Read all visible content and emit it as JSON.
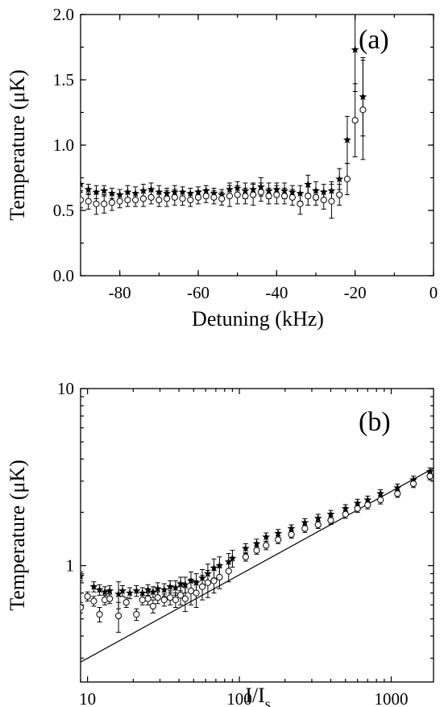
{
  "chart_data": [
    {
      "type": "scatter",
      "panel_label": "(a)",
      "xlabel": "Detuning (kHz)",
      "ylabel": "Temperature (μK)",
      "xlim": [
        -90,
        0
      ],
      "ylim": [
        0.0,
        2.0
      ],
      "x_ticks": [
        -80,
        -60,
        -40,
        -20,
        0
      ],
      "x_tick_labels": [
        "-80",
        "-60",
        "-40",
        "-20",
        "0"
      ],
      "y_ticks": [
        0.0,
        0.5,
        1.0,
        1.5,
        2.0
      ],
      "y_tick_labels": [
        "0.0",
        "0.5",
        "1.0",
        "1.5",
        "2.0"
      ],
      "grid": false,
      "series": [
        {
          "marker": "star",
          "x": [
            -90,
            -88,
            -86,
            -84,
            -82,
            -80,
            -78,
            -76,
            -74,
            -72,
            -70,
            -68,
            -66,
            -64,
            -62,
            -60,
            -58,
            -56,
            -54,
            -52,
            -50,
            -48,
            -46,
            -44,
            -42,
            -40,
            -38,
            -36,
            -34,
            -32,
            -30,
            -28,
            -26,
            -24,
            -22,
            -20,
            -18
          ],
          "y": [
            0.7,
            0.66,
            0.64,
            0.65,
            0.63,
            0.62,
            0.64,
            0.63,
            0.65,
            0.66,
            0.64,
            0.63,
            0.64,
            0.64,
            0.63,
            0.64,
            0.65,
            0.63,
            0.62,
            0.66,
            0.67,
            0.65,
            0.66,
            0.68,
            0.65,
            0.66,
            0.65,
            0.64,
            0.63,
            0.7,
            0.65,
            0.64,
            0.65,
            0.74,
            1.04,
            1.73,
            1.37
          ],
          "err": [
            0.05,
            0.04,
            0.05,
            0.04,
            0.04,
            0.04,
            0.05,
            0.05,
            0.05,
            0.05,
            0.05,
            0.04,
            0.05,
            0.04,
            0.04,
            0.04,
            0.04,
            0.04,
            0.04,
            0.05,
            0.05,
            0.06,
            0.05,
            0.07,
            0.06,
            0.05,
            0.06,
            0.05,
            0.06,
            0.07,
            0.07,
            0.06,
            0.07,
            0.08,
            0.18,
            0.32,
            0.3
          ]
        },
        {
          "marker": "open-circle",
          "x": [
            -90,
            -88,
            -86,
            -84,
            -82,
            -80,
            -78,
            -76,
            -74,
            -72,
            -70,
            -68,
            -66,
            -64,
            -62,
            -60,
            -58,
            -56,
            -54,
            -52,
            -50,
            -48,
            -46,
            -44,
            -42,
            -40,
            -38,
            -36,
            -34,
            -32,
            -30,
            -28,
            -26,
            -24,
            -22,
            -20,
            -18
          ],
          "y": [
            0.58,
            0.57,
            0.55,
            0.55,
            0.56,
            0.57,
            0.58,
            0.58,
            0.59,
            0.6,
            0.58,
            0.59,
            0.6,
            0.59,
            0.58,
            0.6,
            0.61,
            0.6,
            0.59,
            0.61,
            0.62,
            0.61,
            0.62,
            0.64,
            0.61,
            0.62,
            0.61,
            0.6,
            0.55,
            0.61,
            0.6,
            0.58,
            0.57,
            0.62,
            0.74,
            1.19,
            1.27
          ],
          "err": [
            0.06,
            0.06,
            0.08,
            0.07,
            0.06,
            0.05,
            0.05,
            0.05,
            0.06,
            0.05,
            0.05,
            0.06,
            0.06,
            0.05,
            0.05,
            0.05,
            0.05,
            0.05,
            0.05,
            0.08,
            0.07,
            0.06,
            0.08,
            0.07,
            0.06,
            0.07,
            0.06,
            0.06,
            0.08,
            0.07,
            0.06,
            0.07,
            0.13,
            0.08,
            0.12,
            0.28,
            0.38
          ]
        }
      ]
    },
    {
      "type": "scatter",
      "panel_label": "(b)",
      "xlabel_main": "I/I",
      "xlabel_sub": "s",
      "ylabel": "Temperature (μK)",
      "xscale": "log",
      "yscale": "log",
      "xlim": [
        9,
        1900
      ],
      "ylim": [
        0.22,
        10
      ],
      "x_ticks": [
        10,
        100,
        1000
      ],
      "x_tick_labels": [
        "10",
        "100",
        "1000"
      ],
      "y_ticks": [
        1,
        10
      ],
      "y_tick_labels": [
        "1",
        "10"
      ],
      "grid": false,
      "series": [
        {
          "marker": "star",
          "x": [
            9,
            11,
            12,
            13,
            14,
            16,
            17,
            19,
            21,
            23,
            25,
            27,
            29,
            32,
            35,
            38,
            41,
            44,
            48,
            52,
            57,
            62,
            68,
            74,
            85,
            90,
            110,
            130,
            150,
            180,
            220,
            270,
            330,
            400,
            500,
            600,
            700,
            850,
            1100,
            1400,
            1800
          ],
          "y": [
            0.87,
            0.76,
            0.73,
            0.71,
            0.72,
            0.69,
            0.72,
            0.7,
            0.72,
            0.7,
            0.73,
            0.71,
            0.74,
            0.73,
            0.76,
            0.75,
            0.79,
            0.78,
            0.82,
            0.8,
            0.85,
            0.9,
            0.97,
            1.0,
            1.05,
            1.1,
            1.25,
            1.33,
            1.45,
            1.52,
            1.62,
            1.75,
            1.85,
            1.95,
            2.1,
            2.25,
            2.35,
            2.55,
            2.75,
            3.05,
            3.4
          ],
          "err": [
            0.05,
            0.05,
            0.05,
            0.05,
            0.05,
            0.12,
            0.05,
            0.05,
            0.05,
            0.05,
            0.05,
            0.05,
            0.06,
            0.06,
            0.06,
            0.07,
            0.07,
            0.08,
            0.1,
            0.1,
            0.1,
            0.12,
            0.12,
            0.12,
            0.12,
            0.12,
            0.08,
            0.08,
            0.08,
            0.08,
            0.08,
            0.09,
            0.1,
            0.1,
            0.11,
            0.12,
            0.12,
            0.13,
            0.14,
            0.15,
            0.16
          ]
        },
        {
          "marker": "open-circle",
          "x": [
            9,
            10,
            11,
            12,
            13,
            14,
            16,
            18,
            21,
            23,
            25,
            27,
            29,
            32,
            35,
            38,
            41,
            44,
            48,
            52,
            57,
            62,
            68,
            74,
            85,
            110,
            130,
            150,
            180,
            220,
            270,
            330,
            400,
            500,
            600,
            700,
            850,
            1100,
            1400,
            1800
          ],
          "y": [
            0.58,
            0.67,
            0.63,
            0.53,
            0.64,
            0.65,
            0.52,
            0.62,
            0.53,
            0.64,
            0.65,
            0.59,
            0.66,
            0.64,
            0.66,
            0.64,
            0.68,
            0.65,
            0.72,
            0.7,
            0.76,
            0.8,
            0.82,
            0.86,
            0.93,
            1.12,
            1.22,
            1.3,
            1.4,
            1.5,
            1.62,
            1.7,
            1.8,
            1.95,
            2.1,
            2.2,
            2.35,
            2.55,
            2.9,
            3.2
          ],
          "err": [
            0.04,
            0.04,
            0.04,
            0.05,
            0.04,
            0.04,
            0.1,
            0.04,
            0.04,
            0.04,
            0.05,
            0.05,
            0.05,
            0.05,
            0.06,
            0.06,
            0.08,
            0.1,
            0.12,
            0.12,
            0.12,
            0.14,
            0.12,
            0.12,
            0.12,
            0.06,
            0.06,
            0.07,
            0.07,
            0.07,
            0.08,
            0.08,
            0.09,
            0.1,
            0.1,
            0.11,
            0.12,
            0.12,
            0.14,
            0.15
          ]
        }
      ],
      "line": {
        "x": [
          9,
          1900
        ],
        "y": [
          0.285,
          3.55
        ]
      }
    }
  ]
}
